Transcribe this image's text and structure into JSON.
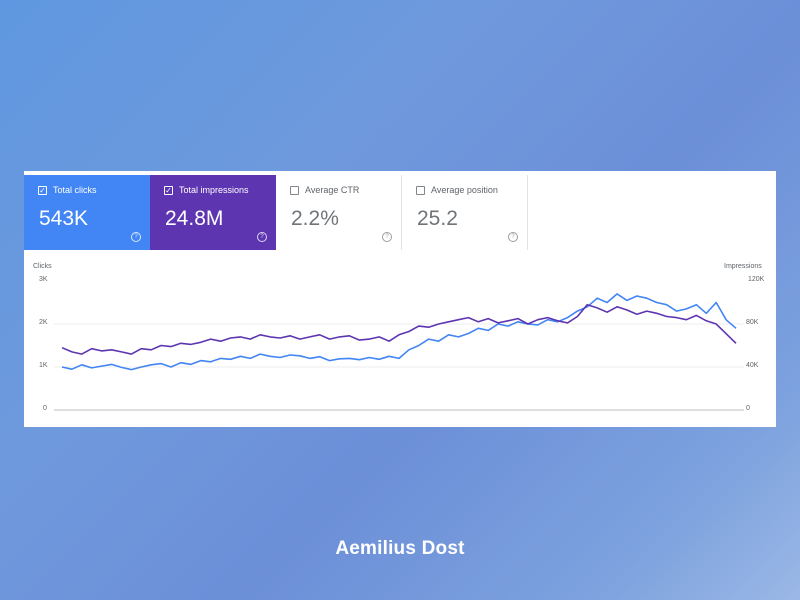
{
  "metrics": [
    {
      "label": "Total clicks",
      "value": "543K",
      "checked": true
    },
    {
      "label": "Total impressions",
      "value": "24.8M",
      "checked": true
    },
    {
      "label": "Average CTR",
      "value": "2.2%",
      "checked": false
    },
    {
      "label": "Average position",
      "value": "25.2",
      "checked": false
    }
  ],
  "colors": {
    "clicks": "#4285f4",
    "impressions": "#5e35b1"
  },
  "chart_data": {
    "type": "line",
    "left_axis": {
      "label": "Clicks",
      "ticks": [
        "3K",
        "2K",
        "1K",
        "0"
      ],
      "range": [
        0,
        3000
      ]
    },
    "right_axis": {
      "label": "Impressions",
      "ticks": [
        "120K",
        "80K",
        "40K",
        "0"
      ],
      "range": [
        0,
        120000
      ]
    },
    "grid": true,
    "series": [
      {
        "key": "clicks",
        "axis": "left",
        "color": "#4285f4",
        "values": [
          1000,
          950,
          1050,
          980,
          1020,
          1060,
          990,
          940,
          1000,
          1050,
          1080,
          1000,
          1100,
          1060,
          1150,
          1120,
          1200,
          1180,
          1250,
          1200,
          1300,
          1250,
          1220,
          1280,
          1260,
          1200,
          1240,
          1150,
          1190,
          1200,
          1170,
          1220,
          1180,
          1250,
          1200,
          1400,
          1500,
          1650,
          1600,
          1750,
          1700,
          1780,
          1900,
          1850,
          2000,
          1950,
          2050,
          2000,
          1980,
          2100,
          2050,
          2150,
          2300,
          2400,
          2600,
          2500,
          2700,
          2550,
          2650,
          2600,
          2500,
          2450,
          2300,
          2350,
          2450,
          2250,
          2500,
          2100,
          1900
        ]
      },
      {
        "key": "impressions",
        "axis": "right",
        "color": "#5e35b1",
        "values": [
          58000,
          54000,
          52000,
          57000,
          55000,
          56000,
          54000,
          52000,
          57000,
          56000,
          60000,
          59000,
          62000,
          61000,
          63000,
          66000,
          64000,
          67000,
          68000,
          66000,
          70000,
          68000,
          67000,
          69000,
          66000,
          68000,
          70000,
          66000,
          68000,
          69000,
          65000,
          66000,
          68000,
          64000,
          70000,
          73000,
          78000,
          77000,
          80000,
          82000,
          84000,
          86000,
          82000,
          85000,
          81000,
          83000,
          85000,
          80000,
          84000,
          86000,
          83000,
          81000,
          87000,
          98000,
          95000,
          91000,
          96000,
          93000,
          89000,
          92000,
          90000,
          87000,
          86000,
          84000,
          88000,
          83000,
          80000,
          71000,
          62000
        ]
      }
    ]
  },
  "brand": "Aemilius Dost"
}
